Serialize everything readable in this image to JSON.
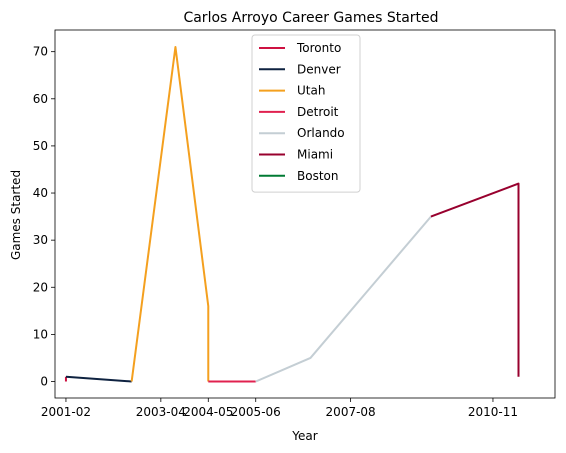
{
  "chart_data": {
    "type": "line",
    "title": "Carlos Arroyo Career Games Started",
    "xlabel": "Year",
    "ylabel": "Games Started",
    "x_axis_kind": "date",
    "xlim": [
      "2000-11",
      "2012-04"
    ],
    "ylim": [
      -3.5,
      74.6
    ],
    "x_ticks": [
      "2001-02",
      "2003-04",
      "2004-05",
      "2005-06",
      "2007-08",
      "2010-11"
    ],
    "y_ticks": [
      0,
      10,
      20,
      30,
      40,
      50,
      60,
      70
    ],
    "grid": false,
    "legend_position": "upper center",
    "series": [
      {
        "name": "Toronto",
        "color": "#ce1141",
        "points": [
          {
            "x": "2001-02",
            "y": 0
          },
          {
            "x": "2001-02",
            "y": 1
          }
        ]
      },
      {
        "name": "Denver",
        "color": "#0e2240",
        "points": [
          {
            "x": "2001-02",
            "y": 1
          },
          {
            "x": "2002-08",
            "y": 0
          }
        ]
      },
      {
        "name": "Utah",
        "color": "#f4a01f",
        "points": [
          {
            "x": "2002-08",
            "y": 0
          },
          {
            "x": "2003-08",
            "y": 71
          },
          {
            "x": "2004-05",
            "y": 16
          },
          {
            "x": "2004-05",
            "y": 0
          }
        ]
      },
      {
        "name": "Detroit",
        "color": "#e0214f",
        "points": [
          {
            "x": "2004-05",
            "y": 0
          },
          {
            "x": "2005-06",
            "y": 0
          }
        ]
      },
      {
        "name": "Orlando",
        "color": "#c4ced4",
        "points": [
          {
            "x": "2005-06",
            "y": 0
          },
          {
            "x": "2006-09",
            "y": 5
          },
          {
            "x": "2009-06",
            "y": 35
          }
        ]
      },
      {
        "name": "Miami",
        "color": "#98002e",
        "points": [
          {
            "x": "2009-06",
            "y": 35
          },
          {
            "x": "2011-06",
            "y": 42
          },
          {
            "x": "2011-06",
            "y": 1
          }
        ]
      },
      {
        "name": "Boston",
        "color": "#007a33",
        "points": []
      }
    ]
  }
}
